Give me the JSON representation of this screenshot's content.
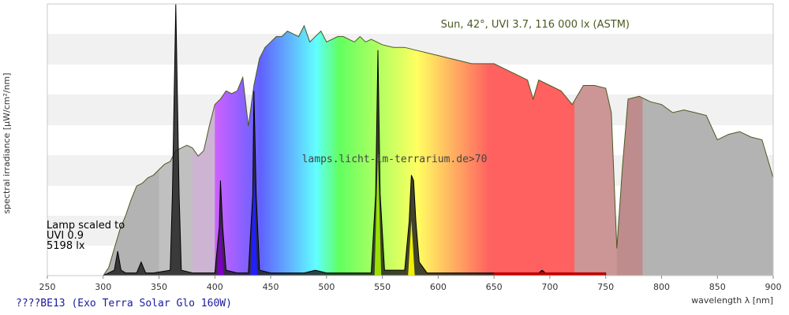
{
  "chart_data": {
    "type": "area",
    "title": "",
    "xlabel": "wavelength λ [nm]",
    "ylabel": "spectral irradiance [µW/cm²/nm]",
    "xlim": [
      250,
      900
    ],
    "ylim": [
      0,
      1
    ],
    "x_ticks": [
      250,
      300,
      350,
      400,
      450,
      500,
      550,
      600,
      650,
      700,
      750,
      800,
      850,
      900
    ],
    "grid": true,
    "sun_annotation": "Sun, 42°, UVI 3.7, 116 000 lx (ASTM)",
    "lamp_annotation": [
      "Lamp scaled to",
      "UVI 0.9",
      "5198 lx"
    ],
    "watermark": "lamps.licht-im-terrarium.de>70",
    "series": [
      {
        "name": "Sun",
        "x": [
          300,
          305,
          310,
          315,
          320,
          325,
          330,
          335,
          340,
          345,
          350,
          355,
          360,
          365,
          370,
          375,
          380,
          385,
          390,
          395,
          400,
          405,
          410,
          415,
          420,
          425,
          430,
          435,
          440,
          445,
          450,
          455,
          460,
          465,
          470,
          475,
          480,
          485,
          490,
          495,
          500,
          505,
          510,
          515,
          520,
          525,
          530,
          535,
          540,
          545,
          550,
          560,
          570,
          580,
          590,
          600,
          610,
          620,
          630,
          640,
          650,
          660,
          670,
          680,
          685,
          690,
          700,
          710,
          720,
          730,
          740,
          750,
          755,
          760,
          765,
          770,
          780,
          790,
          800,
          810,
          820,
          830,
          840,
          850,
          860,
          870,
          880,
          890,
          900
        ],
        "values": [
          0.0,
          0.03,
          0.1,
          0.17,
          0.22,
          0.28,
          0.33,
          0.34,
          0.36,
          0.37,
          0.39,
          0.41,
          0.42,
          0.46,
          0.47,
          0.48,
          0.47,
          0.44,
          0.46,
          0.55,
          0.63,
          0.65,
          0.68,
          0.67,
          0.68,
          0.73,
          0.55,
          0.7,
          0.8,
          0.84,
          0.86,
          0.88,
          0.88,
          0.9,
          0.89,
          0.88,
          0.92,
          0.86,
          0.88,
          0.9,
          0.86,
          0.87,
          0.88,
          0.88,
          0.87,
          0.86,
          0.88,
          0.86,
          0.87,
          0.86,
          0.85,
          0.84,
          0.84,
          0.83,
          0.82,
          0.81,
          0.8,
          0.79,
          0.78,
          0.78,
          0.78,
          0.76,
          0.74,
          0.72,
          0.65,
          0.72,
          0.7,
          0.68,
          0.63,
          0.7,
          0.7,
          0.69,
          0.6,
          0.1,
          0.4,
          0.65,
          0.66,
          0.64,
          0.63,
          0.6,
          0.61,
          0.6,
          0.59,
          0.5,
          0.52,
          0.53,
          0.51,
          0.5,
          0.36
        ]
      },
      {
        "name": "Lamp",
        "x": [
          300,
          305,
          310,
          313,
          316,
          320,
          330,
          334,
          338,
          345,
          360,
          362,
          365,
          368,
          370,
          380,
          390,
          400,
          404,
          405,
          407,
          410,
          420,
          430,
          434,
          435,
          437,
          440,
          450,
          480,
          490,
          500,
          540,
          544,
          546,
          548,
          552,
          570,
          574,
          576,
          578,
          580,
          583,
          590,
          650,
          690,
          693,
          696,
          700,
          750
        ],
        "values": [
          0,
          0.01,
          0.02,
          0.09,
          0.02,
          0.01,
          0.01,
          0.05,
          0.01,
          0.01,
          0.02,
          0.3,
          1.0,
          0.3,
          0.02,
          0.01,
          0.01,
          0.01,
          0.18,
          0.35,
          0.18,
          0.02,
          0.01,
          0.01,
          0.3,
          0.68,
          0.3,
          0.02,
          0.01,
          0.01,
          0.02,
          0.01,
          0.01,
          0.3,
          0.83,
          0.3,
          0.02,
          0.02,
          0.2,
          0.37,
          0.35,
          0.2,
          0.05,
          0.01,
          0.01,
          0.01,
          0.02,
          0.01,
          0.01,
          0.01
        ]
      }
    ]
  },
  "caption": "????BE13 (Exo Terra Solar Glo 160W)"
}
